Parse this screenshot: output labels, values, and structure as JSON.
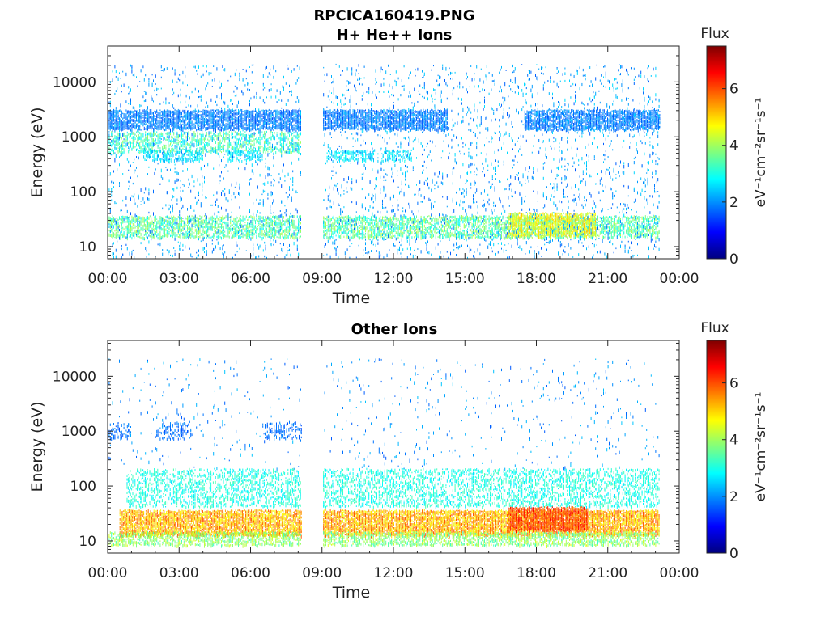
{
  "figure": {
    "title_line1": "RPCICA160419.PNG",
    "title_line2": "H+ He++ Ions"
  },
  "colormap": {
    "name": "jet",
    "stops": [
      "#00007f",
      "#0000ff",
      "#007fff",
      "#00ffff",
      "#7fff7f",
      "#ffff00",
      "#ff7f00",
      "#ff0000",
      "#7f0000"
    ]
  },
  "chart_data": [
    {
      "type": "heatmap",
      "title": "",
      "xlabel": "Time",
      "ylabel": "Energy (eV)",
      "x_ticks": [
        "00:00",
        "03:00",
        "06:00",
        "09:00",
        "12:00",
        "15:00",
        "18:00",
        "21:00",
        "00:00"
      ],
      "x_tick_hours": [
        0,
        3,
        6,
        9,
        12,
        15,
        18,
        21,
        24
      ],
      "xlim_hours": [
        0,
        24
      ],
      "y_scale": "log",
      "y_ticks": [
        "10",
        "100",
        "1000",
        "10000"
      ],
      "y_tick_values": [
        10,
        100,
        1000,
        10000
      ],
      "ylim": [
        6,
        45000
      ],
      "data_coverage_hours": [
        0,
        23.2
      ],
      "data_gap_hours": [
        8.15,
        9.05
      ],
      "colorbar": {
        "label": "Flux",
        "units": "eV⁻¹cm⁻²sr⁻¹s⁻¹",
        "ticks": [
          "0",
          "2",
          "4",
          "6"
        ],
        "range": [
          0,
          7.5
        ]
      },
      "bands": [
        {
          "name": "high-energy band",
          "energy_range_eV": [
            1300,
            3000
          ],
          "flux_range": [
            1.5,
            2.2
          ],
          "hours": [
            [
              0,
              8.15
            ],
            [
              9.05,
              14.3
            ],
            [
              17.5,
              23.2
            ]
          ],
          "density": 0.85
        },
        {
          "name": "mid band",
          "energy_range_eV": [
            500,
            1200
          ],
          "flux_range": [
            2.5,
            4.0
          ],
          "hours": [
            [
              0,
              8.15
            ]
          ],
          "density": 0.45
        },
        {
          "name": "dip band",
          "energy_range_eV": [
            350,
            550
          ],
          "flux_range": [
            2.3,
            3.0
          ],
          "hours": [
            [
              1.5,
              4.0
            ],
            [
              5.0,
              6.5
            ],
            [
              9.2,
              11.2
            ],
            [
              11.5,
              12.8
            ]
          ],
          "density": 0.55
        },
        {
          "name": "low-energy band",
          "energy_range_eV": [
            14,
            35
          ],
          "flux_range": [
            2.8,
            4.2
          ],
          "hours": [
            [
              0,
              8.15
            ],
            [
              9.05,
              23.2
            ]
          ],
          "density": 0.6
        },
        {
          "name": "low-energy enhancement",
          "energy_range_eV": [
            15,
            40
          ],
          "flux_range": [
            4.0,
            5.2
          ],
          "hours": [
            [
              16.8,
              20.5
            ]
          ],
          "density": 0.8
        },
        {
          "name": "background",
          "energy_range_eV": [
            6,
            20000
          ],
          "flux_range": [
            1.6,
            2.6
          ],
          "hours": [
            [
              0,
              8.15
            ],
            [
              9.05,
              23.2
            ]
          ],
          "density": 0.06
        }
      ]
    },
    {
      "type": "heatmap",
      "title": "Other Ions",
      "xlabel": "Time",
      "ylabel": "Energy (eV)",
      "x_ticks": [
        "00:00",
        "03:00",
        "06:00",
        "09:00",
        "12:00",
        "15:00",
        "18:00",
        "21:00",
        "00:00"
      ],
      "x_tick_hours": [
        0,
        3,
        6,
        9,
        12,
        15,
        18,
        21,
        24
      ],
      "xlim_hours": [
        0,
        24
      ],
      "y_scale": "log",
      "y_ticks": [
        "10",
        "100",
        "1000",
        "10000"
      ],
      "y_tick_values": [
        10,
        100,
        1000,
        10000
      ],
      "ylim": [
        6,
        45000
      ],
      "data_coverage_hours": [
        0,
        23.2
      ],
      "data_gap_hours": [
        8.15,
        9.05
      ],
      "colorbar": {
        "label": "Flux",
        "units": "eV⁻¹cm⁻²sr⁻¹s⁻¹",
        "ticks": [
          "0",
          "2",
          "4",
          "6"
        ],
        "range": [
          0,
          7.5
        ]
      },
      "bands": [
        {
          "name": "low-energy band",
          "energy_range_eV": [
            12,
            35
          ],
          "flux_range": [
            4.5,
            6.0
          ],
          "hours": [
            [
              0.5,
              8.15
            ],
            [
              9.05,
              23.2
            ]
          ],
          "density": 0.9
        },
        {
          "name": "low-energy tail",
          "energy_range_eV": [
            8,
            14
          ],
          "flux_range": [
            3.2,
            4.5
          ],
          "hours": [
            [
              0,
              8.15
            ],
            [
              9.05,
              23.2
            ]
          ],
          "density": 0.6
        },
        {
          "name": "mid band",
          "energy_range_eV": [
            40,
            200
          ],
          "flux_range": [
            2.6,
            3.4
          ],
          "hours": [
            [
              0.8,
              8.15
            ],
            [
              9.05,
              23.2
            ]
          ],
          "density": 0.35
        },
        {
          "name": "high-energy patches",
          "energy_range_eV": [
            700,
            1400
          ],
          "flux_range": [
            1.5,
            2.0
          ],
          "hours": [
            [
              0,
              1.0
            ],
            [
              2.0,
              3.5
            ],
            [
              6.5,
              8.15
            ]
          ],
          "density": 0.35
        },
        {
          "name": "strong low-energy enhancement",
          "energy_range_eV": [
            15,
            40
          ],
          "flux_range": [
            5.5,
            6.6
          ],
          "hours": [
            [
              16.8,
              20.2
            ]
          ],
          "density": 0.9
        },
        {
          "name": "background",
          "energy_range_eV": [
            200,
            20000
          ],
          "flux_range": [
            1.6,
            2.4
          ],
          "hours": [
            [
              0,
              8.15
            ],
            [
              9.05,
              23.2
            ]
          ],
          "density": 0.02
        }
      ]
    }
  ]
}
